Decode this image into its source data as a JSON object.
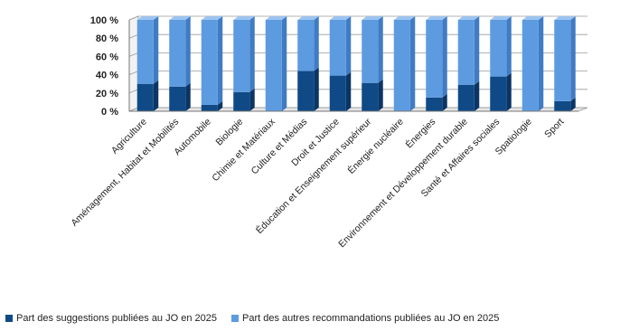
{
  "chart_data": {
    "type": "bar",
    "stacked": true,
    "percent": true,
    "title": "",
    "xlabel": "",
    "ylabel": "",
    "ylim": [
      0,
      100
    ],
    "y_ticks": [
      "0 %",
      "20 %",
      "40 %",
      "60 %",
      "80 %",
      "100 %"
    ],
    "grid": true,
    "legend_position": "bottom",
    "categories": [
      "Agriculture",
      "Aménagement, Habitat et Mobilités",
      "Automobile",
      "Biologie",
      "Chimie et Matériaux",
      "Culture et Médias",
      "Droit et Justice",
      "Éducation et Enseignement supérieur",
      "Énergie nucléaire",
      "Énergies",
      "Environnement et Développement durable",
      "Santé et Affaires sociales",
      "Spatiologie",
      "Sport"
    ],
    "series": [
      {
        "name": "Part des suggestions publiées au JO en 2025",
        "color": "#0f4a86",
        "values": [
          30,
          27,
          7,
          21,
          0,
          44,
          39,
          31,
          0,
          15,
          29,
          38,
          0,
          11
        ]
      },
      {
        "name": "Part des autres recommandations publiées au JO en 2025",
        "color": "#5d9be0",
        "values": [
          70,
          73,
          93,
          79,
          100,
          56,
          61,
          69,
          100,
          85,
          71,
          62,
          100,
          89
        ]
      }
    ]
  }
}
